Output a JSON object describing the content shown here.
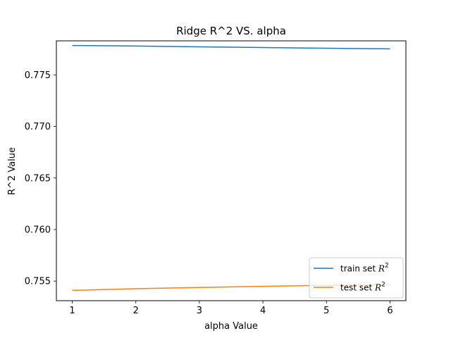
{
  "chart_data": {
    "type": "line",
    "title": "Ridge R^2 VS. alpha",
    "xlabel": "alpha Value",
    "ylabel": "R^2 Value",
    "x": [
      1,
      2,
      3,
      4,
      5,
      6
    ],
    "xlim": [
      0.75,
      6.25
    ],
    "ylim": [
      0.7531,
      0.7783
    ],
    "xticks": [
      1,
      2,
      3,
      4,
      5,
      6
    ],
    "yticks": [
      0.755,
      0.76,
      0.765,
      0.77,
      0.775
    ],
    "ytick_labels": [
      "0.755",
      "0.760",
      "0.765",
      "0.770",
      "0.775"
    ],
    "grid": false,
    "legend_position": "bottom-right",
    "series": [
      {
        "name": "train set R^2",
        "legend_main": "train set ",
        "legend_math": "R",
        "legend_sup": "2",
        "color": "#1f77b4",
        "values": [
          0.77785,
          0.7778,
          0.77772,
          0.77765,
          0.77758,
          0.77752
        ]
      },
      {
        "name": "test set R^2",
        "legend_main": "test set ",
        "legend_math": "R",
        "legend_sup": "2",
        "color": "#ff7f0e",
        "values": [
          0.7541,
          0.75426,
          0.75438,
          0.75449,
          0.75459,
          0.75468
        ]
      }
    ]
  }
}
